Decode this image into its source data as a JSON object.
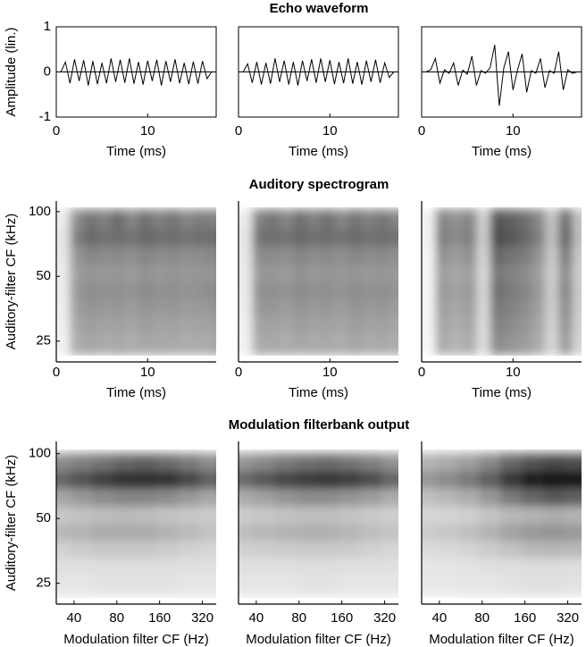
{
  "chart_data": [
    {
      "type": "line",
      "title": "Echo waveform",
      "ylabel": "Amplitude (lin.)",
      "xlabel": "Time (ms)",
      "color": "#000000",
      "box": true,
      "hline": 0,
      "xlim": [
        0,
        17.5
      ],
      "ylim": [
        -1,
        1
      ],
      "xticks": [
        0,
        10
      ],
      "yticks": [
        -1,
        0,
        1
      ],
      "x": [
        0.5,
        1,
        1.5,
        2,
        2.5,
        3,
        3.5,
        4,
        4.5,
        5,
        5.5,
        6,
        6.5,
        7,
        7.5,
        8,
        8.5,
        9,
        9.5,
        10,
        10.5,
        11,
        11.5,
        12,
        12.5,
        13,
        13.5,
        14,
        14.5,
        15,
        15.5,
        16,
        16.5,
        17
      ],
      "values": [
        0,
        0.22,
        -0.25,
        0.28,
        -0.2,
        0.26,
        -0.3,
        0.24,
        -0.27,
        0.2,
        -0.25,
        0.3,
        -0.22,
        0.27,
        -0.24,
        0.3,
        -0.26,
        0.22,
        -0.28,
        0.25,
        -0.2,
        0.27,
        -0.3,
        0.24,
        -0.22,
        0.28,
        -0.25,
        0.2,
        -0.27,
        0.23,
        -0.26,
        0.24,
        -0.15,
        0
      ]
    },
    {
      "type": "line",
      "xlabel": "Time (ms)",
      "color": "#000000",
      "box": true,
      "hline": 0,
      "xlim": [
        0,
        17.5
      ],
      "ylim": [
        -1,
        1
      ],
      "xticks": [
        0,
        10
      ],
      "x": [
        0.5,
        1,
        1.5,
        2,
        2.5,
        3,
        3.5,
        4,
        4.5,
        5,
        5.5,
        6,
        6.5,
        7,
        7.5,
        8,
        8.5,
        9,
        9.5,
        10,
        10.5,
        11,
        11.5,
        12,
        12.5,
        13,
        13.5,
        14,
        14.5,
        15,
        15.5,
        16,
        16.5,
        17
      ],
      "values": [
        0,
        0.18,
        -0.24,
        0.22,
        -0.28,
        0.2,
        -0.26,
        0.3,
        -0.22,
        0.25,
        -0.28,
        0.22,
        -0.3,
        0.25,
        -0.2,
        0.28,
        -0.24,
        0.3,
        -0.22,
        0.26,
        -0.27,
        0.22,
        -0.25,
        0.3,
        -0.26,
        0.22,
        -0.28,
        0.25,
        -0.22,
        0.27,
        -0.24,
        0.2,
        -0.12,
        0
      ]
    },
    {
      "type": "line",
      "xlabel": "Time (ms)",
      "color": "#000000",
      "box": true,
      "hline": 0,
      "xlim": [
        0,
        17.5
      ],
      "ylim": [
        -1,
        1
      ],
      "xticks": [
        0,
        10
      ],
      "x": [
        0.5,
        1,
        1.5,
        2,
        2.5,
        3,
        3.5,
        4,
        4.5,
        5,
        5.5,
        6,
        6.5,
        7,
        7.5,
        8,
        8.5,
        9,
        9.5,
        10,
        10.5,
        11,
        11.5,
        12,
        12.5,
        13,
        13.5,
        14,
        14.5,
        15,
        15.5,
        16,
        16.5,
        17
      ],
      "values": [
        0,
        0.05,
        0.3,
        -0.25,
        0.05,
        -0.03,
        0.2,
        -0.3,
        0.04,
        -0.05,
        0.35,
        -0.3,
        0.03,
        -0.03,
        0.1,
        0.6,
        -0.75,
        0.1,
        0.45,
        -0.4,
        0.05,
        0.4,
        -0.45,
        0.03,
        -0.03,
        0.3,
        -0.35,
        0.03,
        -0.03,
        0.45,
        -0.4,
        0.05,
        -0.03,
        0
      ]
    },
    {
      "type": "heatmap",
      "title": "Auditory spectrogram",
      "ylabel": "Auditory-filter CF (kHz)",
      "xlabel": "Time (ms)",
      "colormap": "gray_r",
      "zlim": [
        0,
        1
      ],
      "yscale": "log",
      "xlim": [
        0,
        17.5
      ],
      "ylim": [
        20,
        112
      ],
      "xticks": [
        0,
        10
      ],
      "yticks": [
        25,
        50,
        100
      ],
      "x": [
        0.75,
        2.25,
        3.75,
        5.25,
        6.75,
        8.25,
        9.75,
        11.25,
        12.75,
        14.25,
        15.75,
        17.25
      ],
      "y": [
        21,
        25,
        30,
        36,
        43,
        52,
        63,
        76,
        92,
        108
      ],
      "z": [
        [
          0.05,
          0.3,
          0.32,
          0.3,
          0.33,
          0.31,
          0.3,
          0.32,
          0.3,
          0.31,
          0.3,
          0.32
        ],
        [
          0.05,
          0.32,
          0.35,
          0.33,
          0.34,
          0.32,
          0.35,
          0.33,
          0.34,
          0.32,
          0.33,
          0.34
        ],
        [
          0.06,
          0.35,
          0.38,
          0.36,
          0.37,
          0.35,
          0.38,
          0.36,
          0.37,
          0.35,
          0.36,
          0.37
        ],
        [
          0.07,
          0.38,
          0.42,
          0.4,
          0.41,
          0.39,
          0.42,
          0.4,
          0.41,
          0.39,
          0.4,
          0.41
        ],
        [
          0.08,
          0.4,
          0.45,
          0.43,
          0.44,
          0.42,
          0.46,
          0.43,
          0.44,
          0.42,
          0.43,
          0.45
        ],
        [
          0.08,
          0.38,
          0.42,
          0.4,
          0.41,
          0.39,
          0.43,
          0.4,
          0.42,
          0.4,
          0.41,
          0.42
        ],
        [
          0.09,
          0.42,
          0.47,
          0.45,
          0.46,
          0.44,
          0.48,
          0.45,
          0.46,
          0.44,
          0.45,
          0.47
        ],
        [
          0.1,
          0.5,
          0.58,
          0.55,
          0.57,
          0.54,
          0.59,
          0.56,
          0.57,
          0.55,
          0.56,
          0.57
        ],
        [
          0.08,
          0.45,
          0.55,
          0.5,
          0.58,
          0.48,
          0.56,
          0.5,
          0.55,
          0.48,
          0.52,
          0.5
        ],
        [
          0.05,
          0.3,
          0.35,
          0.32,
          0.38,
          0.3,
          0.36,
          0.32,
          0.35,
          0.3,
          0.33,
          0.32
        ]
      ]
    },
    {
      "type": "heatmap",
      "xlabel": "Time (ms)",
      "colormap": "gray_r",
      "zlim": [
        0,
        1
      ],
      "yscale": "log",
      "xlim": [
        0,
        17.5
      ],
      "ylim": [
        20,
        112
      ],
      "xticks": [
        0,
        10
      ],
      "x": [
        0.75,
        2.25,
        3.75,
        5.25,
        6.75,
        8.25,
        9.75,
        11.25,
        12.75,
        14.25,
        15.75,
        17.25
      ],
      "y": [
        21,
        25,
        30,
        36,
        43,
        52,
        63,
        76,
        92,
        108
      ],
      "z": [
        [
          0.05,
          0.31,
          0.3,
          0.33,
          0.3,
          0.32,
          0.31,
          0.3,
          0.33,
          0.3,
          0.31,
          0.3
        ],
        [
          0.05,
          0.33,
          0.34,
          0.32,
          0.35,
          0.33,
          0.34,
          0.32,
          0.35,
          0.33,
          0.34,
          0.32
        ],
        [
          0.06,
          0.36,
          0.37,
          0.35,
          0.38,
          0.36,
          0.37,
          0.35,
          0.38,
          0.36,
          0.37,
          0.35
        ],
        [
          0.07,
          0.4,
          0.41,
          0.39,
          0.42,
          0.4,
          0.41,
          0.39,
          0.42,
          0.4,
          0.41,
          0.39
        ],
        [
          0.08,
          0.43,
          0.44,
          0.42,
          0.46,
          0.43,
          0.44,
          0.42,
          0.45,
          0.43,
          0.44,
          0.42
        ],
        [
          0.08,
          0.4,
          0.41,
          0.39,
          0.43,
          0.4,
          0.42,
          0.4,
          0.42,
          0.4,
          0.41,
          0.4
        ],
        [
          0.09,
          0.45,
          0.46,
          0.44,
          0.48,
          0.45,
          0.46,
          0.44,
          0.47,
          0.45,
          0.46,
          0.44
        ],
        [
          0.1,
          0.55,
          0.57,
          0.54,
          0.59,
          0.56,
          0.57,
          0.55,
          0.58,
          0.55,
          0.57,
          0.55
        ],
        [
          0.08,
          0.5,
          0.55,
          0.48,
          0.57,
          0.5,
          0.56,
          0.48,
          0.55,
          0.5,
          0.54,
          0.48
        ],
        [
          0.05,
          0.32,
          0.35,
          0.3,
          0.37,
          0.32,
          0.36,
          0.3,
          0.35,
          0.32,
          0.34,
          0.3
        ]
      ]
    },
    {
      "type": "heatmap",
      "xlabel": "Time (ms)",
      "colormap": "gray_r",
      "zlim": [
        0,
        1
      ],
      "yscale": "log",
      "xlim": [
        0,
        17.5
      ],
      "ylim": [
        20,
        112
      ],
      "xticks": [
        0,
        10
      ],
      "x": [
        0.75,
        2.25,
        3.75,
        5.25,
        6.75,
        8.25,
        9.75,
        11.25,
        12.75,
        14.25,
        15.75,
        17.25
      ],
      "y": [
        21,
        25,
        30,
        36,
        43,
        52,
        63,
        76,
        92,
        108
      ],
      "z": [
        [
          0.03,
          0.3,
          0.27,
          0.3,
          0.12,
          0.42,
          0.39,
          0.36,
          0.3,
          0.15,
          0.36,
          0.15
        ],
        [
          0.03,
          0.33,
          0.29,
          0.33,
          0.13,
          0.46,
          0.42,
          0.39,
          0.33,
          0.16,
          0.39,
          0.16
        ],
        [
          0.04,
          0.35,
          0.32,
          0.35,
          0.14,
          0.49,
          0.46,
          0.42,
          0.35,
          0.18,
          0.42,
          0.18
        ],
        [
          0.04,
          0.38,
          0.34,
          0.38,
          0.15,
          0.53,
          0.49,
          0.45,
          0.38,
          0.19,
          0.45,
          0.19
        ],
        [
          0.04,
          0.4,
          0.36,
          0.4,
          0.16,
          0.56,
          0.52,
          0.48,
          0.4,
          0.2,
          0.48,
          0.2
        ],
        [
          0.04,
          0.38,
          0.34,
          0.38,
          0.15,
          0.53,
          0.49,
          0.45,
          0.38,
          0.19,
          0.45,
          0.19
        ],
        [
          0.04,
          0.43,
          0.38,
          0.43,
          0.17,
          0.6,
          0.55,
          0.51,
          0.43,
          0.21,
          0.51,
          0.21
        ],
        [
          0.05,
          0.5,
          0.45,
          0.5,
          0.2,
          0.7,
          0.65,
          0.6,
          0.5,
          0.25,
          0.6,
          0.25
        ],
        [
          0.05,
          0.48,
          0.43,
          0.48,
          0.19,
          0.67,
          0.62,
          0.57,
          0.48,
          0.24,
          0.57,
          0.24
        ],
        [
          0.03,
          0.33,
          0.29,
          0.33,
          0.13,
          0.46,
          0.42,
          0.39,
          0.33,
          0.16,
          0.39,
          0.16
        ]
      ]
    },
    {
      "type": "heatmap",
      "title": "Modulation filterbank output",
      "ylabel": "Auditory-filter CF (kHz)",
      "xlabel": "Modulation filter CF (Hz)",
      "colormap": "gray_r",
      "zlim": [
        0,
        1
      ],
      "xscale": "log",
      "yscale": "log",
      "xlim": [
        30,
        400
      ],
      "ylim": [
        20,
        114
      ],
      "xticks": [
        40,
        80,
        160,
        320
      ],
      "yticks": [
        25,
        50,
        100
      ],
      "x": [
        32,
        45,
        64,
        90,
        128,
        180,
        256,
        360
      ],
      "y": [
        21,
        25,
        30,
        36,
        43,
        52,
        63,
        76,
        92,
        108
      ],
      "z": [
        [
          0.08,
          0.08,
          0.09,
          0.09,
          0.09,
          0.09,
          0.08,
          0.08
        ],
        [
          0.1,
          0.1,
          0.11,
          0.11,
          0.11,
          0.11,
          0.1,
          0.1
        ],
        [
          0.12,
          0.12,
          0.13,
          0.13,
          0.13,
          0.13,
          0.12,
          0.12
        ],
        [
          0.18,
          0.2,
          0.22,
          0.22,
          0.22,
          0.2,
          0.18,
          0.16
        ],
        [
          0.28,
          0.3,
          0.33,
          0.33,
          0.33,
          0.3,
          0.27,
          0.24
        ],
        [
          0.22,
          0.24,
          0.26,
          0.27,
          0.26,
          0.24,
          0.22,
          0.2
        ],
        [
          0.35,
          0.4,
          0.45,
          0.48,
          0.48,
          0.45,
          0.4,
          0.35
        ],
        [
          0.6,
          0.68,
          0.75,
          0.8,
          0.82,
          0.8,
          0.72,
          0.62
        ],
        [
          0.45,
          0.5,
          0.55,
          0.6,
          0.62,
          0.58,
          0.52,
          0.45
        ],
        [
          0.15,
          0.18,
          0.2,
          0.22,
          0.22,
          0.2,
          0.18,
          0.15
        ]
      ]
    },
    {
      "type": "heatmap",
      "xlabel": "Modulation filter CF (Hz)",
      "colormap": "gray_r",
      "zlim": [
        0,
        1
      ],
      "xscale": "log",
      "yscale": "log",
      "xlim": [
        30,
        400
      ],
      "ylim": [
        20,
        114
      ],
      "xticks": [
        40,
        80,
        160,
        320
      ],
      "x": [
        32,
        45,
        64,
        90,
        128,
        180,
        256,
        360
      ],
      "y": [
        21,
        25,
        30,
        36,
        43,
        52,
        63,
        76,
        92,
        108
      ],
      "z": [
        [
          0.08,
          0.08,
          0.08,
          0.09,
          0.09,
          0.08,
          0.08,
          0.08
        ],
        [
          0.1,
          0.1,
          0.1,
          0.11,
          0.11,
          0.1,
          0.1,
          0.1
        ],
        [
          0.12,
          0.12,
          0.12,
          0.13,
          0.13,
          0.12,
          0.12,
          0.12
        ],
        [
          0.18,
          0.19,
          0.2,
          0.21,
          0.21,
          0.2,
          0.18,
          0.16
        ],
        [
          0.26,
          0.28,
          0.3,
          0.31,
          0.31,
          0.29,
          0.26,
          0.23
        ],
        [
          0.2,
          0.22,
          0.24,
          0.25,
          0.25,
          0.23,
          0.21,
          0.19
        ],
        [
          0.33,
          0.37,
          0.42,
          0.45,
          0.45,
          0.42,
          0.38,
          0.33
        ],
        [
          0.58,
          0.65,
          0.72,
          0.76,
          0.78,
          0.76,
          0.7,
          0.6
        ],
        [
          0.42,
          0.47,
          0.52,
          0.56,
          0.58,
          0.55,
          0.5,
          0.43
        ],
        [
          0.14,
          0.17,
          0.19,
          0.2,
          0.21,
          0.19,
          0.17,
          0.14
        ]
      ]
    },
    {
      "type": "heatmap",
      "xlabel": "Modulation filter CF (Hz)",
      "colormap": "gray_r",
      "zlim": [
        0,
        1
      ],
      "xscale": "log",
      "yscale": "log",
      "xlim": [
        30,
        400
      ],
      "ylim": [
        20,
        114
      ],
      "xticks": [
        40,
        80,
        160,
        320
      ],
      "x": [
        32,
        45,
        64,
        90,
        128,
        180,
        256,
        360
      ],
      "y": [
        21,
        25,
        30,
        36,
        43,
        52,
        63,
        76,
        92,
        108
      ],
      "z": [
        [
          0.07,
          0.07,
          0.08,
          0.08,
          0.09,
          0.09,
          0.09,
          0.08
        ],
        [
          0.09,
          0.09,
          0.1,
          0.1,
          0.11,
          0.12,
          0.12,
          0.11
        ],
        [
          0.1,
          0.1,
          0.11,
          0.12,
          0.13,
          0.14,
          0.14,
          0.13
        ],
        [
          0.14,
          0.15,
          0.17,
          0.2,
          0.24,
          0.27,
          0.28,
          0.27
        ],
        [
          0.2,
          0.22,
          0.25,
          0.3,
          0.36,
          0.4,
          0.42,
          0.4
        ],
        [
          0.16,
          0.17,
          0.19,
          0.23,
          0.28,
          0.3,
          0.32,
          0.3
        ],
        [
          0.25,
          0.28,
          0.32,
          0.4,
          0.52,
          0.6,
          0.65,
          0.62
        ],
        [
          0.4,
          0.45,
          0.52,
          0.62,
          0.78,
          0.88,
          0.92,
          0.9
        ],
        [
          0.3,
          0.33,
          0.38,
          0.47,
          0.6,
          0.68,
          0.72,
          0.7
        ],
        [
          0.1,
          0.12,
          0.14,
          0.18,
          0.24,
          0.27,
          0.28,
          0.27
        ]
      ]
    }
  ]
}
